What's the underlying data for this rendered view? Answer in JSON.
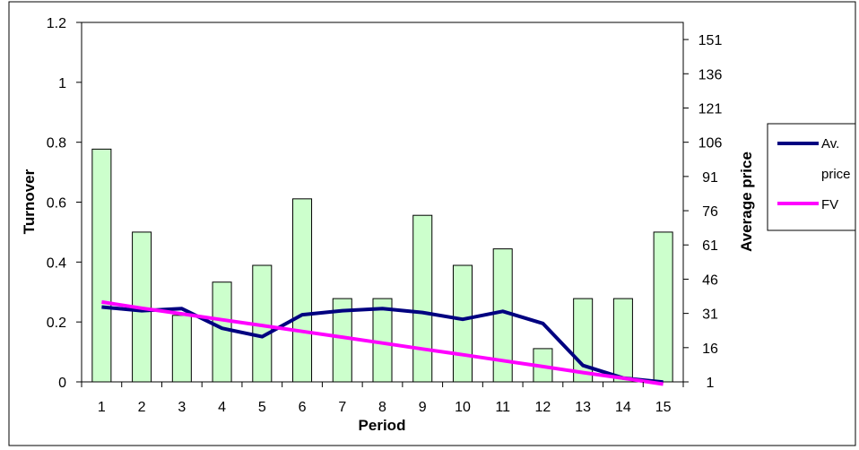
{
  "chart_data": {
    "type": "bar",
    "xlabel": "Period",
    "ylabel": "Turnover",
    "y2label": "Average price",
    "categories": [
      "1",
      "2",
      "3",
      "4",
      "5",
      "6",
      "7",
      "8",
      "9",
      "10",
      "11",
      "12",
      "13",
      "14",
      "15"
    ],
    "ylim": [
      0,
      1.2
    ],
    "y_ticks": [
      "0",
      "0.2",
      "0.4",
      "0.6",
      "0.8",
      "1",
      "1.2"
    ],
    "y2lim": [
      1,
      158.5
    ],
    "y2_ticks": [
      "1",
      "16",
      "31",
      "46",
      "61",
      "76",
      "91",
      "106",
      "121",
      "136",
      "151"
    ],
    "series": [
      {
        "name": "Turnover",
        "axis": "left",
        "type": "bar",
        "color": "#ccffcc",
        "values": [
          0.777,
          0.5,
          0.222,
          0.333,
          0.389,
          0.611,
          0.278,
          0.278,
          0.556,
          0.389,
          0.444,
          0.111,
          0.278,
          0.278,
          0.5
        ]
      },
      {
        "name": "Av. price",
        "axis": "right",
        "type": "line",
        "color": "#000080",
        "values": [
          33.8,
          32.2,
          33.1,
          24.5,
          20.8,
          30.4,
          32.2,
          33.1,
          31.4,
          28.4,
          31.9,
          26.6,
          8.2,
          2.7,
          0.9
        ]
      },
      {
        "name": "FV",
        "axis": "right",
        "type": "line",
        "color": "#ff00ff",
        "values": [
          36.0,
          33.3,
          30.8,
          28.2,
          25.7,
          23.1,
          20.6,
          18.0,
          15.4,
          12.9,
          10.3,
          7.7,
          5.1,
          2.6,
          0.0
        ]
      }
    ],
    "legend": {
      "position": "right",
      "entries": [
        {
          "label_line1": "Av.",
          "label_line2": "price",
          "color": "#000080"
        },
        {
          "label_line1": "FV",
          "label_line2": "",
          "color": "#ff00ff"
        }
      ]
    },
    "grid": false
  }
}
